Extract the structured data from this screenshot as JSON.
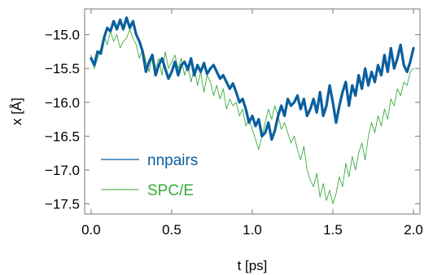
{
  "chart_data": {
    "type": "line",
    "xlabel": "t [ps]",
    "ylabel": "x [Å]",
    "xlim": [
      -0.04,
      2.04
    ],
    "ylim": [
      -17.65,
      -14.62
    ],
    "x_ticks": [
      0.0,
      0.5,
      1.0,
      1.5,
      2.0
    ],
    "x_tick_labels": [
      "0.0",
      "0.5",
      "1.0",
      "1.5",
      "2.0"
    ],
    "y_ticks": [
      -15.0,
      -15.5,
      -16.0,
      -16.5,
      -17.0,
      -17.5
    ],
    "y_tick_labels": [
      "−15.0",
      "−15.5",
      "−16.0",
      "−16.5",
      "−17.0",
      "−17.5"
    ],
    "grid": false,
    "legend_position": "bottom-left",
    "series": [
      {
        "name": "nnpairs",
        "color": "#0a5fa0",
        "x": [
          0.0,
          0.02,
          0.04,
          0.06,
          0.08,
          0.1,
          0.12,
          0.14,
          0.16,
          0.18,
          0.2,
          0.22,
          0.24,
          0.26,
          0.28,
          0.3,
          0.32,
          0.34,
          0.36,
          0.38,
          0.4,
          0.42,
          0.44,
          0.46,
          0.48,
          0.5,
          0.52,
          0.54,
          0.56,
          0.58,
          0.6,
          0.62,
          0.64,
          0.66,
          0.68,
          0.7,
          0.72,
          0.74,
          0.76,
          0.78,
          0.8,
          0.82,
          0.84,
          0.86,
          0.88,
          0.9,
          0.92,
          0.94,
          0.96,
          0.98,
          1.0,
          1.02,
          1.04,
          1.06,
          1.08,
          1.1,
          1.12,
          1.14,
          1.16,
          1.18,
          1.2,
          1.22,
          1.24,
          1.26,
          1.28,
          1.3,
          1.32,
          1.34,
          1.36,
          1.38,
          1.4,
          1.42,
          1.44,
          1.46,
          1.48,
          1.5,
          1.52,
          1.54,
          1.56,
          1.58,
          1.6,
          1.62,
          1.64,
          1.66,
          1.68,
          1.7,
          1.72,
          1.74,
          1.76,
          1.78,
          1.8,
          1.82,
          1.84,
          1.86,
          1.88,
          1.9,
          1.92,
          1.94,
          1.96,
          1.98,
          2.0
        ],
        "y": [
          -15.35,
          -15.45,
          -15.25,
          -15.28,
          -15.05,
          -14.9,
          -14.95,
          -14.8,
          -14.92,
          -14.78,
          -14.92,
          -14.75,
          -14.9,
          -14.8,
          -15.0,
          -15.1,
          -15.25,
          -15.55,
          -15.4,
          -15.3,
          -15.6,
          -15.45,
          -15.35,
          -15.5,
          -15.65,
          -15.55,
          -15.4,
          -15.6,
          -15.45,
          -15.4,
          -15.52,
          -15.35,
          -15.6,
          -15.45,
          -15.55,
          -15.42,
          -15.58,
          -15.5,
          -15.45,
          -15.55,
          -15.65,
          -15.6,
          -15.7,
          -15.8,
          -15.72,
          -15.85,
          -16.0,
          -15.95,
          -16.1,
          -16.3,
          -16.2,
          -16.35,
          -16.25,
          -16.5,
          -16.45,
          -16.3,
          -16.55,
          -16.42,
          -16.2,
          -16.05,
          -16.2,
          -15.95,
          -16.05,
          -16.0,
          -15.9,
          -16.1,
          -15.95,
          -16.2,
          -16.1,
          -15.95,
          -16.15,
          -15.85,
          -16.2,
          -16.05,
          -15.75,
          -16.0,
          -16.3,
          -16.05,
          -15.85,
          -15.7,
          -16.05,
          -15.75,
          -15.9,
          -15.6,
          -15.8,
          -15.5,
          -15.75,
          -15.55,
          -15.7,
          -15.45,
          -15.6,
          -15.3,
          -15.55,
          -15.2,
          -15.5,
          -15.35,
          -15.15,
          -15.45,
          -15.55,
          -15.4,
          -15.2
        ]
      },
      {
        "name": "SPC/E",
        "color": "#3aaa3a",
        "x": [
          0.0,
          0.02,
          0.04,
          0.06,
          0.08,
          0.1,
          0.12,
          0.14,
          0.16,
          0.18,
          0.2,
          0.22,
          0.24,
          0.26,
          0.28,
          0.3,
          0.32,
          0.34,
          0.36,
          0.38,
          0.4,
          0.42,
          0.44,
          0.46,
          0.48,
          0.5,
          0.52,
          0.54,
          0.56,
          0.58,
          0.6,
          0.62,
          0.64,
          0.66,
          0.68,
          0.7,
          0.72,
          0.74,
          0.76,
          0.78,
          0.8,
          0.82,
          0.84,
          0.86,
          0.88,
          0.9,
          0.92,
          0.94,
          0.96,
          0.98,
          1.0,
          1.02,
          1.04,
          1.06,
          1.08,
          1.1,
          1.12,
          1.14,
          1.16,
          1.18,
          1.2,
          1.22,
          1.24,
          1.26,
          1.28,
          1.3,
          1.32,
          1.34,
          1.36,
          1.38,
          1.4,
          1.42,
          1.44,
          1.46,
          1.48,
          1.5,
          1.52,
          1.54,
          1.56,
          1.58,
          1.6,
          1.62,
          1.64,
          1.66,
          1.68,
          1.7,
          1.72,
          1.74,
          1.76,
          1.78,
          1.8,
          1.82,
          1.84,
          1.86,
          1.88,
          1.9,
          1.92,
          1.94,
          1.96,
          1.98,
          2.0
        ],
        "y": [
          -15.3,
          -15.5,
          -15.35,
          -15.2,
          -15.0,
          -15.15,
          -14.95,
          -15.1,
          -15.0,
          -15.2,
          -15.1,
          -15.05,
          -14.92,
          -15.05,
          -15.15,
          -15.35,
          -15.2,
          -15.4,
          -15.55,
          -15.3,
          -15.5,
          -15.35,
          -15.6,
          -15.25,
          -15.5,
          -15.4,
          -15.3,
          -15.5,
          -15.35,
          -15.6,
          -15.45,
          -15.7,
          -15.5,
          -15.75,
          -15.55,
          -15.85,
          -15.6,
          -15.7,
          -15.9,
          -15.75,
          -15.95,
          -15.8,
          -16.1,
          -15.95,
          -16.05,
          -16.0,
          -16.2,
          -16.1,
          -16.35,
          -16.25,
          -16.4,
          -16.55,
          -16.7,
          -16.5,
          -16.3,
          -16.1,
          -16.25,
          -16.05,
          -16.2,
          -16.4,
          -16.3,
          -16.45,
          -16.6,
          -16.5,
          -16.7,
          -16.85,
          -16.65,
          -17.0,
          -17.15,
          -17.25,
          -17.05,
          -17.4,
          -17.2,
          -17.45,
          -17.3,
          -17.5,
          -17.35,
          -17.1,
          -17.25,
          -16.9,
          -17.1,
          -16.8,
          -17.0,
          -16.75,
          -16.6,
          -16.85,
          -16.5,
          -16.3,
          -16.45,
          -16.2,
          -16.35,
          -16.1,
          -16.25,
          -15.95,
          -16.05,
          -15.8,
          -15.9,
          -15.7,
          -15.75,
          -15.55,
          -15.5
        ]
      }
    ]
  }
}
